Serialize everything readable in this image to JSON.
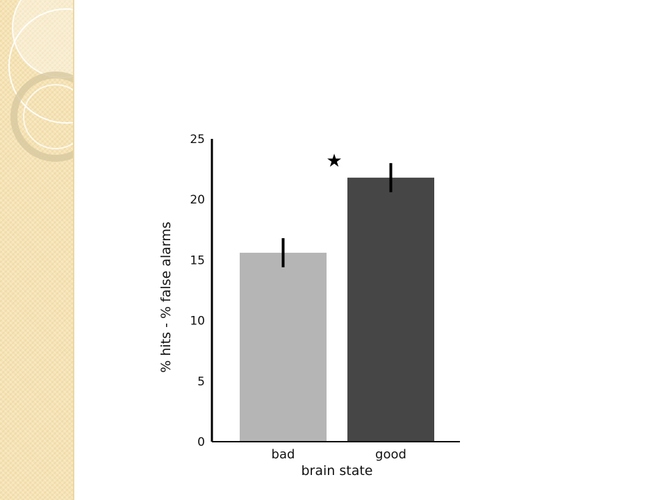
{
  "slide": {
    "panel_color": "#f6e3b3",
    "panel_decoration": "concentric-ring-ornaments"
  },
  "chart_data": {
    "type": "bar",
    "title": "",
    "xlabel": "brain state",
    "ylabel": "% hits - % false alarms",
    "categories": [
      "bad",
      "good"
    ],
    "values": [
      15.6,
      21.8
    ],
    "error": [
      1.2,
      1.2
    ],
    "colors": [
      "#b5b5b5",
      "#464646"
    ],
    "ylim": [
      0,
      25
    ],
    "yticks": [
      "0",
      "5",
      "10",
      "15",
      "20",
      "25"
    ],
    "grid": false,
    "legend": "none",
    "annotation": {
      "symbol": "★",
      "meaning": "significance"
    }
  }
}
